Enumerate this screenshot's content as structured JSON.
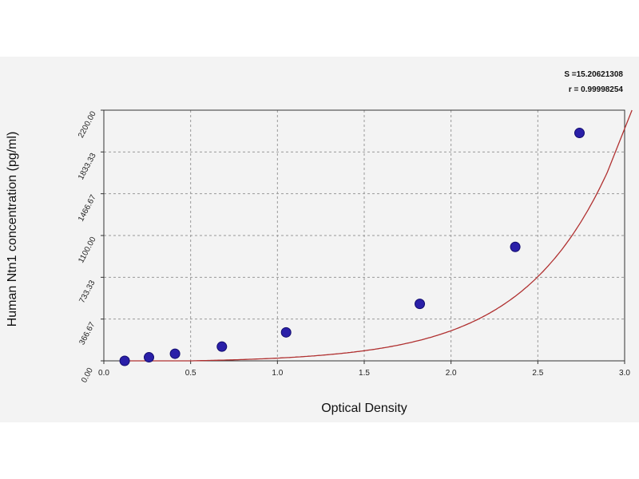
{
  "chart_data": {
    "type": "scatter",
    "xlabel": "Optical Density",
    "ylabel": "Human Ntn1 concentration (pg/ml)",
    "xlim": [
      0,
      3.0
    ],
    "ylim": [
      0,
      2200
    ],
    "x_ticks": [
      "0.0",
      "0.5",
      "1.0",
      "1.5",
      "2.0",
      "2.5",
      "3.0"
    ],
    "y_ticks": [
      "0.00",
      "366.67",
      "733.33",
      "1100.00",
      "1466.67",
      "1833.33",
      "2200.00"
    ],
    "grid": true,
    "annotations": {
      "s_label": "S =15.20621308",
      "r_label": "r = 0.99998254"
    },
    "series": [
      {
        "points": [
          {
            "x": 0.12,
            "y": 0
          },
          {
            "x": 0.26,
            "y": 31.25
          },
          {
            "x": 0.41,
            "y": 62.5
          },
          {
            "x": 0.68,
            "y": 125
          },
          {
            "x": 1.05,
            "y": 250
          },
          {
            "x": 1.82,
            "y": 500
          },
          {
            "x": 2.37,
            "y": 1000
          },
          {
            "x": 2.74,
            "y": 2000
          }
        ]
      }
    ],
    "colors": {
      "point": "#2a1fa8",
      "curve": "#b03030",
      "grid": "#9a9a9a",
      "axis": "#333333"
    }
  }
}
